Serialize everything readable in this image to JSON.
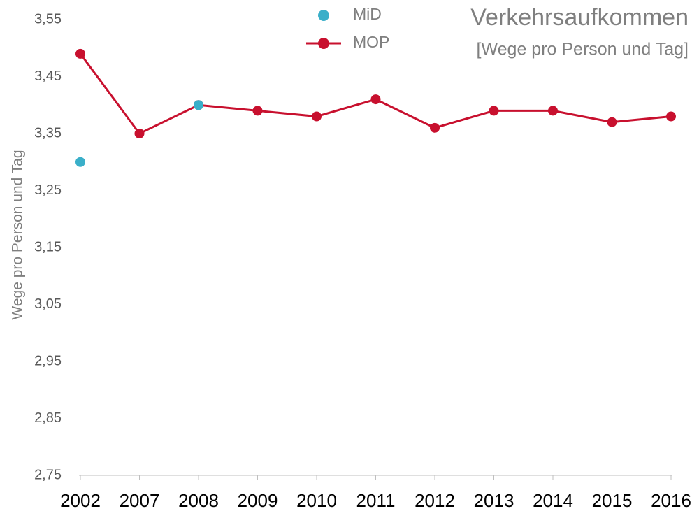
{
  "chart_data": {
    "type": "line",
    "title": "Verkehrsaufkommen",
    "subtitle": "[Wege pro Person und Tag]",
    "y_label": "Wege pro Person und Tag",
    "categories": [
      "2002",
      "2007",
      "2008",
      "2009",
      "2010",
      "2011",
      "2012",
      "2013",
      "2014",
      "2015",
      "2016"
    ],
    "series": [
      {
        "name": "MiD",
        "color": "#3aafc9",
        "marker_only": true,
        "values": [
          3.3,
          null,
          3.4,
          null,
          null,
          null,
          null,
          null,
          null,
          null,
          null
        ]
      },
      {
        "name": "MOP",
        "color": "#c8102e",
        "marker_only": false,
        "values": [
          3.49,
          3.35,
          3.4,
          3.39,
          3.38,
          3.41,
          3.36,
          3.39,
          3.39,
          3.37,
          3.38
        ]
      }
    ],
    "ylim": [
      2.75,
      3.55
    ],
    "yticks": [
      {
        "value": 2.75,
        "label": "2,75"
      },
      {
        "value": 2.85,
        "label": "2,85"
      },
      {
        "value": 2.95,
        "label": "2,95"
      },
      {
        "value": 3.05,
        "label": "3,05"
      },
      {
        "value": 3.15,
        "label": "3,15"
      },
      {
        "value": 3.25,
        "label": "3,25"
      },
      {
        "value": 3.35,
        "label": "3,35"
      },
      {
        "value": 3.45,
        "label": "3,45"
      },
      {
        "value": 3.55,
        "label": "3,55"
      }
    ],
    "grid": false
  }
}
